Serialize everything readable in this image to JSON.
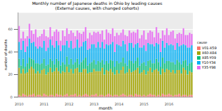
{
  "chart_data": {
    "type": "bar",
    "title": "Monthly number of Japanese deaths in Ohio by leading causes",
    "subtitle": "(External causes, with changed cohorts)",
    "x_label": "month",
    "y_label": "number of deaths",
    "legend_title": "cause",
    "legend": "right",
    "stacked": true,
    "grid": true,
    "ylim": [
      0,
      75
    ],
    "yticks": [
      0,
      20,
      40,
      60
    ],
    "categories": [
      "2010",
      null,
      null,
      null,
      null,
      null,
      null,
      null,
      null,
      null,
      null,
      null,
      "2011",
      null,
      null,
      null,
      null,
      null,
      null,
      null,
      null,
      null,
      null,
      null,
      "2012",
      null,
      null,
      null,
      null,
      null,
      null,
      null,
      null,
      null,
      null,
      null,
      "2013",
      null,
      null,
      null,
      null,
      null,
      null,
      null,
      null,
      null,
      null,
      null,
      "2014",
      null,
      null,
      null,
      null,
      null,
      null,
      null,
      null,
      null,
      null,
      null,
      "2015",
      null,
      null,
      null,
      null,
      null,
      null,
      null,
      null,
      null,
      null,
      null,
      "2016",
      null,
      null,
      null,
      null,
      null,
      null,
      null,
      null,
      null,
      null,
      null
    ],
    "series": [
      {
        "name": "V01-X59",
        "color": "#F8766D",
        "values": [
          2,
          1,
          3,
          2,
          1,
          2,
          2,
          3,
          1,
          2,
          2,
          1,
          3,
          2,
          1,
          2,
          2,
          1,
          3,
          2,
          2,
          1,
          2,
          3,
          1,
          2,
          2,
          3,
          1,
          2,
          1,
          2,
          3,
          2,
          1,
          2,
          2,
          3,
          1,
          2,
          2,
          1,
          2,
          3,
          2,
          1,
          2,
          2,
          1,
          2,
          3,
          2,
          1,
          2,
          2,
          1,
          3,
          2,
          2,
          1,
          2,
          1,
          2,
          3,
          2,
          2,
          1,
          2,
          1,
          3,
          2,
          2,
          3,
          2,
          1,
          2,
          2,
          3,
          1,
          2,
          2,
          1,
          2,
          2
        ]
      },
      {
        "name": "X60-X84",
        "color": "#A3A500",
        "values": [
          24,
          20,
          22,
          19,
          21,
          23,
          25,
          22,
          20,
          21,
          19,
          23,
          22,
          18,
          21,
          24,
          20,
          22,
          23,
          21,
          19,
          22,
          20,
          24,
          21,
          23,
          19,
          22,
          25,
          20,
          21,
          23,
          22,
          19,
          21,
          20,
          23,
          20,
          22,
          21,
          24,
          19,
          22,
          20,
          23,
          21,
          18,
          22,
          20,
          22,
          24,
          19,
          21,
          23,
          20,
          22,
          21,
          24,
          19,
          21,
          22,
          19,
          21,
          23,
          20,
          22,
          24,
          21,
          19,
          22,
          20,
          23,
          21,
          20,
          23,
          19,
          22,
          21,
          20,
          24,
          22,
          19,
          21,
          20
        ]
      },
      {
        "name": "X85-Y09",
        "color": "#00BF7D",
        "values": [
          8,
          7,
          9,
          6,
          8,
          10,
          7,
          8,
          9,
          7,
          8,
          6,
          9,
          8,
          7,
          8,
          10,
          6,
          8,
          9,
          7,
          8,
          7,
          9,
          7,
          9,
          8,
          6,
          8,
          7,
          9,
          8,
          10,
          7,
          8,
          9,
          8,
          6,
          9,
          8,
          7,
          9,
          8,
          7,
          8,
          10,
          7,
          8,
          9,
          7,
          8,
          9,
          6,
          8,
          10,
          7,
          8,
          9,
          7,
          8,
          7,
          8,
          9,
          7,
          8,
          6,
          9,
          8,
          7,
          10,
          8,
          7,
          8,
          9,
          7,
          8,
          9,
          7,
          8,
          6,
          9,
          8,
          7,
          9
        ]
      },
      {
        "name": "Y10-Y34",
        "color": "#00B0F6",
        "values": [
          15,
          14,
          16,
          13,
          15,
          17,
          14,
          16,
          15,
          13,
          16,
          14,
          16,
          13,
          15,
          17,
          14,
          15,
          16,
          14,
          13,
          15,
          17,
          14,
          15,
          16,
          14,
          13,
          17,
          15,
          14,
          16,
          15,
          14,
          13,
          16,
          14,
          15,
          17,
          13,
          16,
          14,
          15,
          16,
          14,
          17,
          13,
          15,
          16,
          14,
          15,
          17,
          13,
          15,
          16,
          14,
          15,
          13,
          16,
          14,
          15,
          13,
          16,
          14,
          17,
          15,
          14,
          16,
          13,
          15,
          14,
          16,
          14,
          16,
          15,
          13,
          15,
          14,
          17,
          15,
          13,
          16,
          14,
          15
        ]
      },
      {
        "name": "Y35-Y98",
        "color": "#E76BF3",
        "values": [
          14,
          10,
          8,
          12,
          9,
          13,
          11,
          7,
          15,
          10,
          9,
          12,
          10,
          13,
          9,
          11,
          8,
          14,
          10,
          12,
          9,
          13,
          8,
          11,
          12,
          9,
          14,
          10,
          8,
          13,
          11,
          9,
          12,
          10,
          14,
          8,
          11,
          13,
          9,
          12,
          10,
          8,
          13,
          11,
          9,
          12,
          14,
          10,
          9,
          12,
          10,
          8,
          13,
          11,
          9,
          14,
          10,
          12,
          8,
          11,
          13,
          10,
          9,
          12,
          11,
          8,
          14,
          10,
          12,
          9,
          11,
          13,
          9,
          11,
          13,
          10,
          8,
          12,
          10,
          14,
          9,
          11,
          13,
          10
        ]
      }
    ]
  }
}
